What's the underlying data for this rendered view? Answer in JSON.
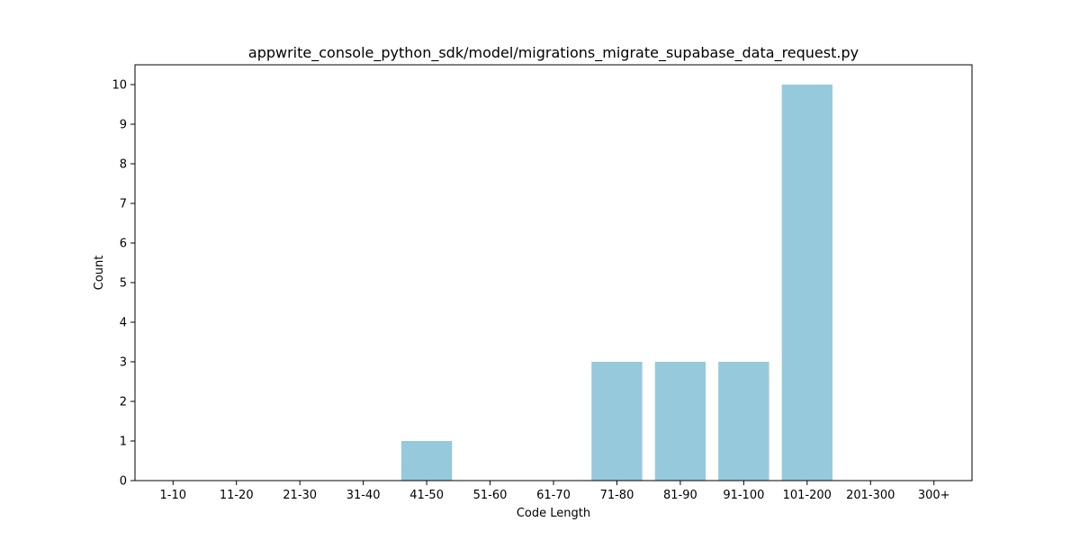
{
  "chart_data": {
    "type": "bar",
    "title": "appwrite_console_python_sdk/model/migrations_migrate_supabase_data_request.py",
    "xlabel": "Code Length",
    "ylabel": "Count",
    "categories": [
      "1-10",
      "11-20",
      "21-30",
      "31-40",
      "41-50",
      "51-60",
      "61-70",
      "71-80",
      "81-90",
      "91-100",
      "101-200",
      "201-300",
      "300+"
    ],
    "values": [
      0,
      0,
      0,
      0,
      1,
      0,
      0,
      3,
      3,
      3,
      10,
      0,
      0
    ],
    "ylim": [
      0,
      10.5
    ],
    "yticks": [
      0,
      1,
      2,
      3,
      4,
      5,
      6,
      7,
      8,
      9,
      10
    ],
    "bar_color": "#96c9dc",
    "grid": false,
    "legend": "none"
  }
}
